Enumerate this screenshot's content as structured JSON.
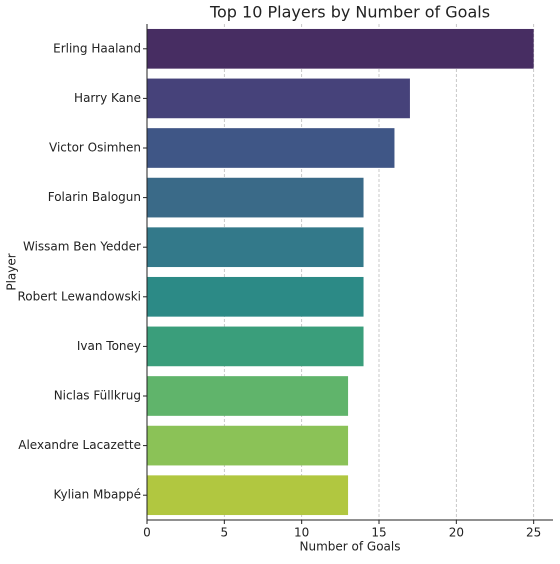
{
  "chart_data": {
    "type": "barh",
    "title": "Top 10 Players by Number of Goals",
    "xlabel": "Number of Goals",
    "ylabel": "Player",
    "categories": [
      "Erling Haaland",
      "Harry Kane",
      "Victor Osimhen",
      "Folarin Balogun",
      "Wissam Ben Yedder",
      "Robert Lewandowski",
      "Ivan Toney",
      "Niclas Füllkrug",
      "Alexandre Lacazette",
      "Kylian Mbappé"
    ],
    "values": [
      25,
      17,
      16,
      14,
      14,
      14,
      14,
      13,
      13,
      13
    ],
    "colors": [
      "#472d62",
      "#46427a",
      "#3f5686",
      "#3a6a88",
      "#33798a",
      "#2c8a86",
      "#3a9e7b",
      "#60b46b",
      "#8bc257",
      "#b1c740"
    ],
    "xlim": [
      0,
      26.25
    ],
    "xticks": [
      0,
      5,
      10,
      15,
      20,
      25
    ],
    "grid": true
  }
}
